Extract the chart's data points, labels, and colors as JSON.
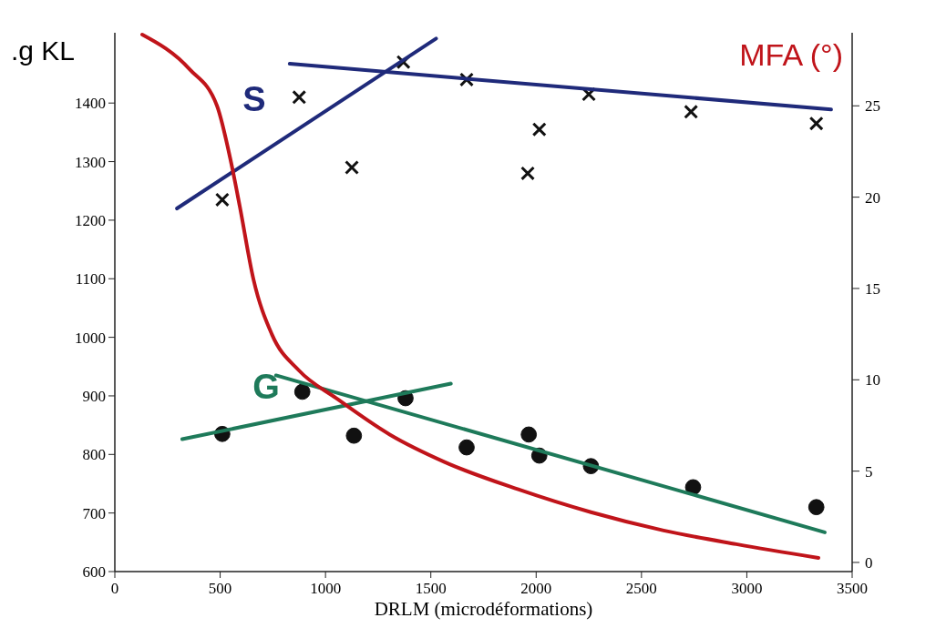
{
  "chart_data": {
    "type": "line",
    "xlabel": "DRLM (microdéformations)",
    "ylabel": ".g KL",
    "y2label": "MFA (°)",
    "xlim": [
      0,
      3500
    ],
    "xticks": [
      0,
      500,
      1000,
      1500,
      2000,
      2500,
      3000,
      3500
    ],
    "ylim": [
      600,
      1520
    ],
    "yticks": [
      600,
      700,
      800,
      900,
      1000,
      1100,
      1200,
      1300,
      1400
    ],
    "y2lim": [
      -0.5,
      29
    ],
    "y2ticks": [
      0,
      5,
      10,
      15,
      20,
      25
    ],
    "series": [
      {
        "type": "scatter",
        "marker": "cross",
        "color": "#111111",
        "x": [
          510,
          875,
          1125,
          1370,
          1670,
          1960,
          2015,
          2250,
          2735,
          3330
        ],
        "values": [
          1235,
          1410,
          1290,
          1470,
          1440,
          1280,
          1355,
          1415,
          1385,
          1365
        ]
      },
      {
        "type": "scatter",
        "marker": "circle",
        "color": "#111111",
        "x": [
          510,
          890,
          1135,
          1380,
          1670,
          1965,
          2015,
          2260,
          2745,
          3330
        ],
        "values": [
          835,
          907,
          832,
          896,
          812,
          834,
          798,
          780,
          744,
          710
        ]
      },
      {
        "name": "S",
        "color": "#1f2a7a",
        "x": [
          295,
          1525
        ],
        "values": [
          1220,
          1510
        ]
      },
      {
        "color": "#1f2a7a",
        "x": [
          830,
          3400
        ],
        "values": [
          1467,
          1389
        ]
      },
      {
        "name": "G",
        "color": "#1e7a5a",
        "x": [
          320,
          1595
        ],
        "values": [
          826,
          921
        ]
      },
      {
        "color": "#1e7a5a",
        "x": [
          765,
          3370
        ],
        "values": [
          935,
          667
        ]
      },
      {
        "axis": "y2",
        "color": "#c0141a",
        "x": [
          130,
          355,
          485,
          550,
          593,
          658,
          745,
          875,
          1050,
          1305,
          1565,
          1915,
          2260,
          2605,
          2950,
          3340
        ],
        "values": [
          28.9,
          27,
          25,
          22,
          19.5,
          15.5,
          12.5,
          10.5,
          9,
          7,
          5.5,
          4,
          2.75,
          1.75,
          1,
          0.25
        ]
      }
    ]
  }
}
